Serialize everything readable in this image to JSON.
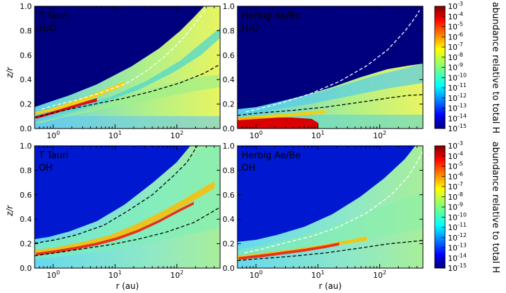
{
  "chart_data": [
    {
      "type": "heatmap",
      "panel_label": "T Tauri",
      "species": "H₂O",
      "x_scale": "log",
      "xlim": [
        0.5,
        500
      ],
      "ylim": [
        0,
        1.0
      ],
      "ylabel": "z/r",
      "xlabel": "",
      "ridge_z_over_r": [
        [
          0.6,
          0.09
        ],
        [
          1,
          0.11
        ],
        [
          3,
          0.15
        ],
        [
          10,
          0.22
        ],
        [
          30,
          0.28
        ]
      ],
      "white_dashed_contour": [
        [
          0.6,
          0.12
        ],
        [
          1,
          0.15
        ],
        [
          3,
          0.2
        ],
        [
          10,
          0.35
        ],
        [
          30,
          0.6
        ],
        [
          100,
          0.9
        ],
        [
          200,
          1.0
        ]
      ],
      "black_dashed_contour": [
        [
          0.6,
          0.1
        ],
        [
          1,
          0.12
        ],
        [
          10,
          0.2
        ],
        [
          100,
          0.36
        ],
        [
          500,
          0.57
        ]
      ],
      "surface_edge": [
        [
          0.5,
          0.17
        ],
        [
          1,
          0.22
        ],
        [
          10,
          0.4
        ],
        [
          100,
          0.7
        ],
        [
          500,
          1.0
        ]
      ]
    },
    {
      "type": "heatmap",
      "panel_label": "Herbig Ae/Be",
      "species": "H₂O",
      "x_scale": "log",
      "xlim": [
        0.5,
        500
      ],
      "ylim": [
        0,
        1.0
      ],
      "xlabel": "",
      "ridge_z_over_r": [
        [
          0.6,
          0.05
        ],
        [
          3,
          0.07
        ]
      ],
      "white_dashed_contour": [
        [
          0.6,
          0.13
        ],
        [
          1,
          0.16
        ],
        [
          10,
          0.33
        ],
        [
          100,
          0.6
        ],
        [
          400,
          0.93
        ]
      ],
      "black_dashed_contour": [
        [
          0.6,
          0.11
        ],
        [
          1,
          0.12
        ],
        [
          10,
          0.17
        ],
        [
          100,
          0.24
        ],
        [
          500,
          0.27
        ]
      ],
      "surface_edge": [
        [
          0.5,
          0.17
        ],
        [
          1,
          0.2
        ],
        [
          10,
          0.31
        ],
        [
          100,
          0.45
        ],
        [
          500,
          0.6
        ]
      ]
    },
    {
      "type": "heatmap",
      "panel_label": "T Tauri",
      "species": "OH",
      "x_scale": "log",
      "xlim": [
        0.5,
        500
      ],
      "ylim": [
        0,
        1.0
      ],
      "ylabel": "z/r",
      "xlabel": "r (au)",
      "ridge_z_over_r": [
        [
          0.6,
          0.12
        ],
        [
          1,
          0.15
        ],
        [
          10,
          0.3
        ],
        [
          100,
          0.5
        ]
      ],
      "black_dashed_contour_upper": [
        [
          0.6,
          0.14
        ],
        [
          1,
          0.17
        ],
        [
          10,
          0.35
        ],
        [
          100,
          0.7
        ],
        [
          200,
          1.0
        ]
      ],
      "black_dashed_contour_lower": [
        [
          0.6,
          0.1
        ],
        [
          1,
          0.12
        ],
        [
          10,
          0.2
        ],
        [
          100,
          0.34
        ],
        [
          500,
          0.56
        ]
      ],
      "surface_edge": [
        [
          0.5,
          0.2
        ],
        [
          1,
          0.26
        ],
        [
          10,
          0.48
        ],
        [
          100,
          0.84
        ],
        [
          200,
          1.0
        ]
      ]
    },
    {
      "type": "heatmap",
      "panel_label": "Herbig Ae/Be",
      "species": "OH",
      "x_scale": "log",
      "xlim": [
        0.5,
        500
      ],
      "ylim": [
        0,
        1.0
      ],
      "xlabel": "r (au)",
      "ridge_z_over_r": [
        [
          0.6,
          0.1
        ],
        [
          1,
          0.12
        ],
        [
          10,
          0.17
        ],
        [
          30,
          0.22
        ]
      ],
      "white_dashed_contour": [
        [
          0.6,
          0.14
        ],
        [
          1,
          0.17
        ],
        [
          10,
          0.3
        ],
        [
          100,
          0.55
        ],
        [
          500,
          1.0
        ]
      ],
      "black_dashed_contour": [
        [
          0.6,
          0.09
        ],
        [
          1,
          0.1
        ],
        [
          10,
          0.16
        ],
        [
          100,
          0.24
        ],
        [
          500,
          0.27
        ]
      ],
      "surface_edge": [
        [
          0.5,
          0.2
        ],
        [
          1,
          0.25
        ],
        [
          10,
          0.45
        ],
        [
          100,
          0.75
        ],
        [
          300,
          1.0
        ]
      ]
    }
  ],
  "axes": {
    "y_ticks": [
      "0.0",
      "0.2",
      "0.4",
      "0.6",
      "0.8",
      "1.0"
    ],
    "x_tick_labels": [
      {
        "base": "10",
        "exp": "0"
      },
      {
        "base": "10",
        "exp": "1"
      },
      {
        "base": "10",
        "exp": "2"
      }
    ],
    "ylabel": "z/r",
    "xlabel": "r (au)"
  },
  "colorbar": {
    "label": "abundance relative to total H",
    "scale": "log",
    "range": [
      1e-15,
      0.001
    ],
    "tick_exponents": [
      "-3",
      "-4",
      "-5",
      "-6",
      "-7",
      "-8",
      "-9",
      "-10",
      "-11",
      "-12",
      "-13",
      "-14",
      "-15"
    ],
    "colormap": [
      "#00007f",
      "#0000ff",
      "#007fff",
      "#00ffff",
      "#7fff7f",
      "#ffff00",
      "#ff7f00",
      "#ff0000",
      "#7f0000"
    ]
  }
}
